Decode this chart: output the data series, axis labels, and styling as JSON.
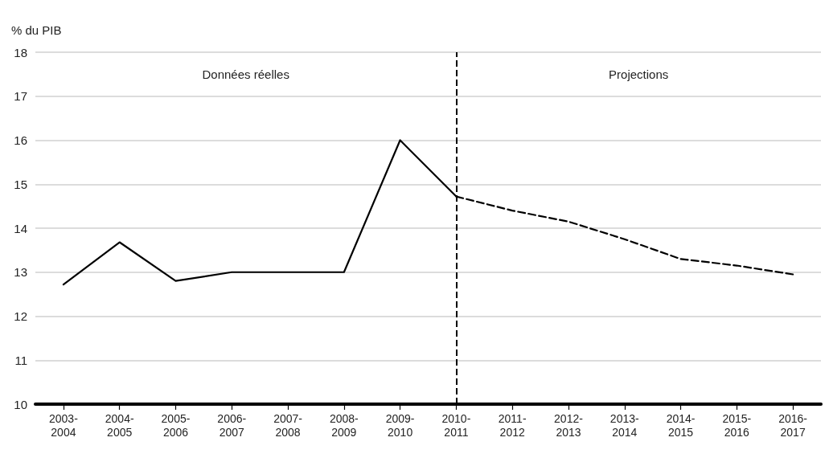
{
  "chart_data": {
    "type": "line",
    "ylabel": "% du PIB",
    "categories": [
      "2003-2004",
      "2004-2005",
      "2005-2006",
      "2006-2007",
      "2007-2008",
      "2008-2009",
      "2009-2010",
      "2010-2011",
      "2011-2012",
      "2012-2013",
      "2013-2014",
      "2014-2015",
      "2015-2016",
      "2016-2017"
    ],
    "series": [
      {
        "color": "#000000",
        "line_style": "solid",
        "values": [
          12.72,
          13.68,
          12.8,
          13.0,
          13.0,
          13.0,
          16.0,
          14.72,
          null,
          null,
          null,
          null,
          null,
          null
        ]
      },
      {
        "color": "#000000",
        "line_style": "dashed",
        "values": [
          null,
          null,
          null,
          null,
          null,
          null,
          null,
          14.72,
          14.4,
          14.15,
          13.75,
          13.3,
          13.15,
          12.95
        ]
      }
    ],
    "ylim": [
      10,
      18
    ],
    "yticks": [
      10,
      11,
      12,
      13,
      14,
      15,
      16,
      17,
      18
    ],
    "grid": "y",
    "marker": "none",
    "ref_lines": [
      {
        "axis": "x",
        "value": "2010-2011",
        "color": "#000000",
        "line_style": "dashed"
      }
    ],
    "annotations": [
      "Données réelles",
      "Projections"
    ]
  }
}
